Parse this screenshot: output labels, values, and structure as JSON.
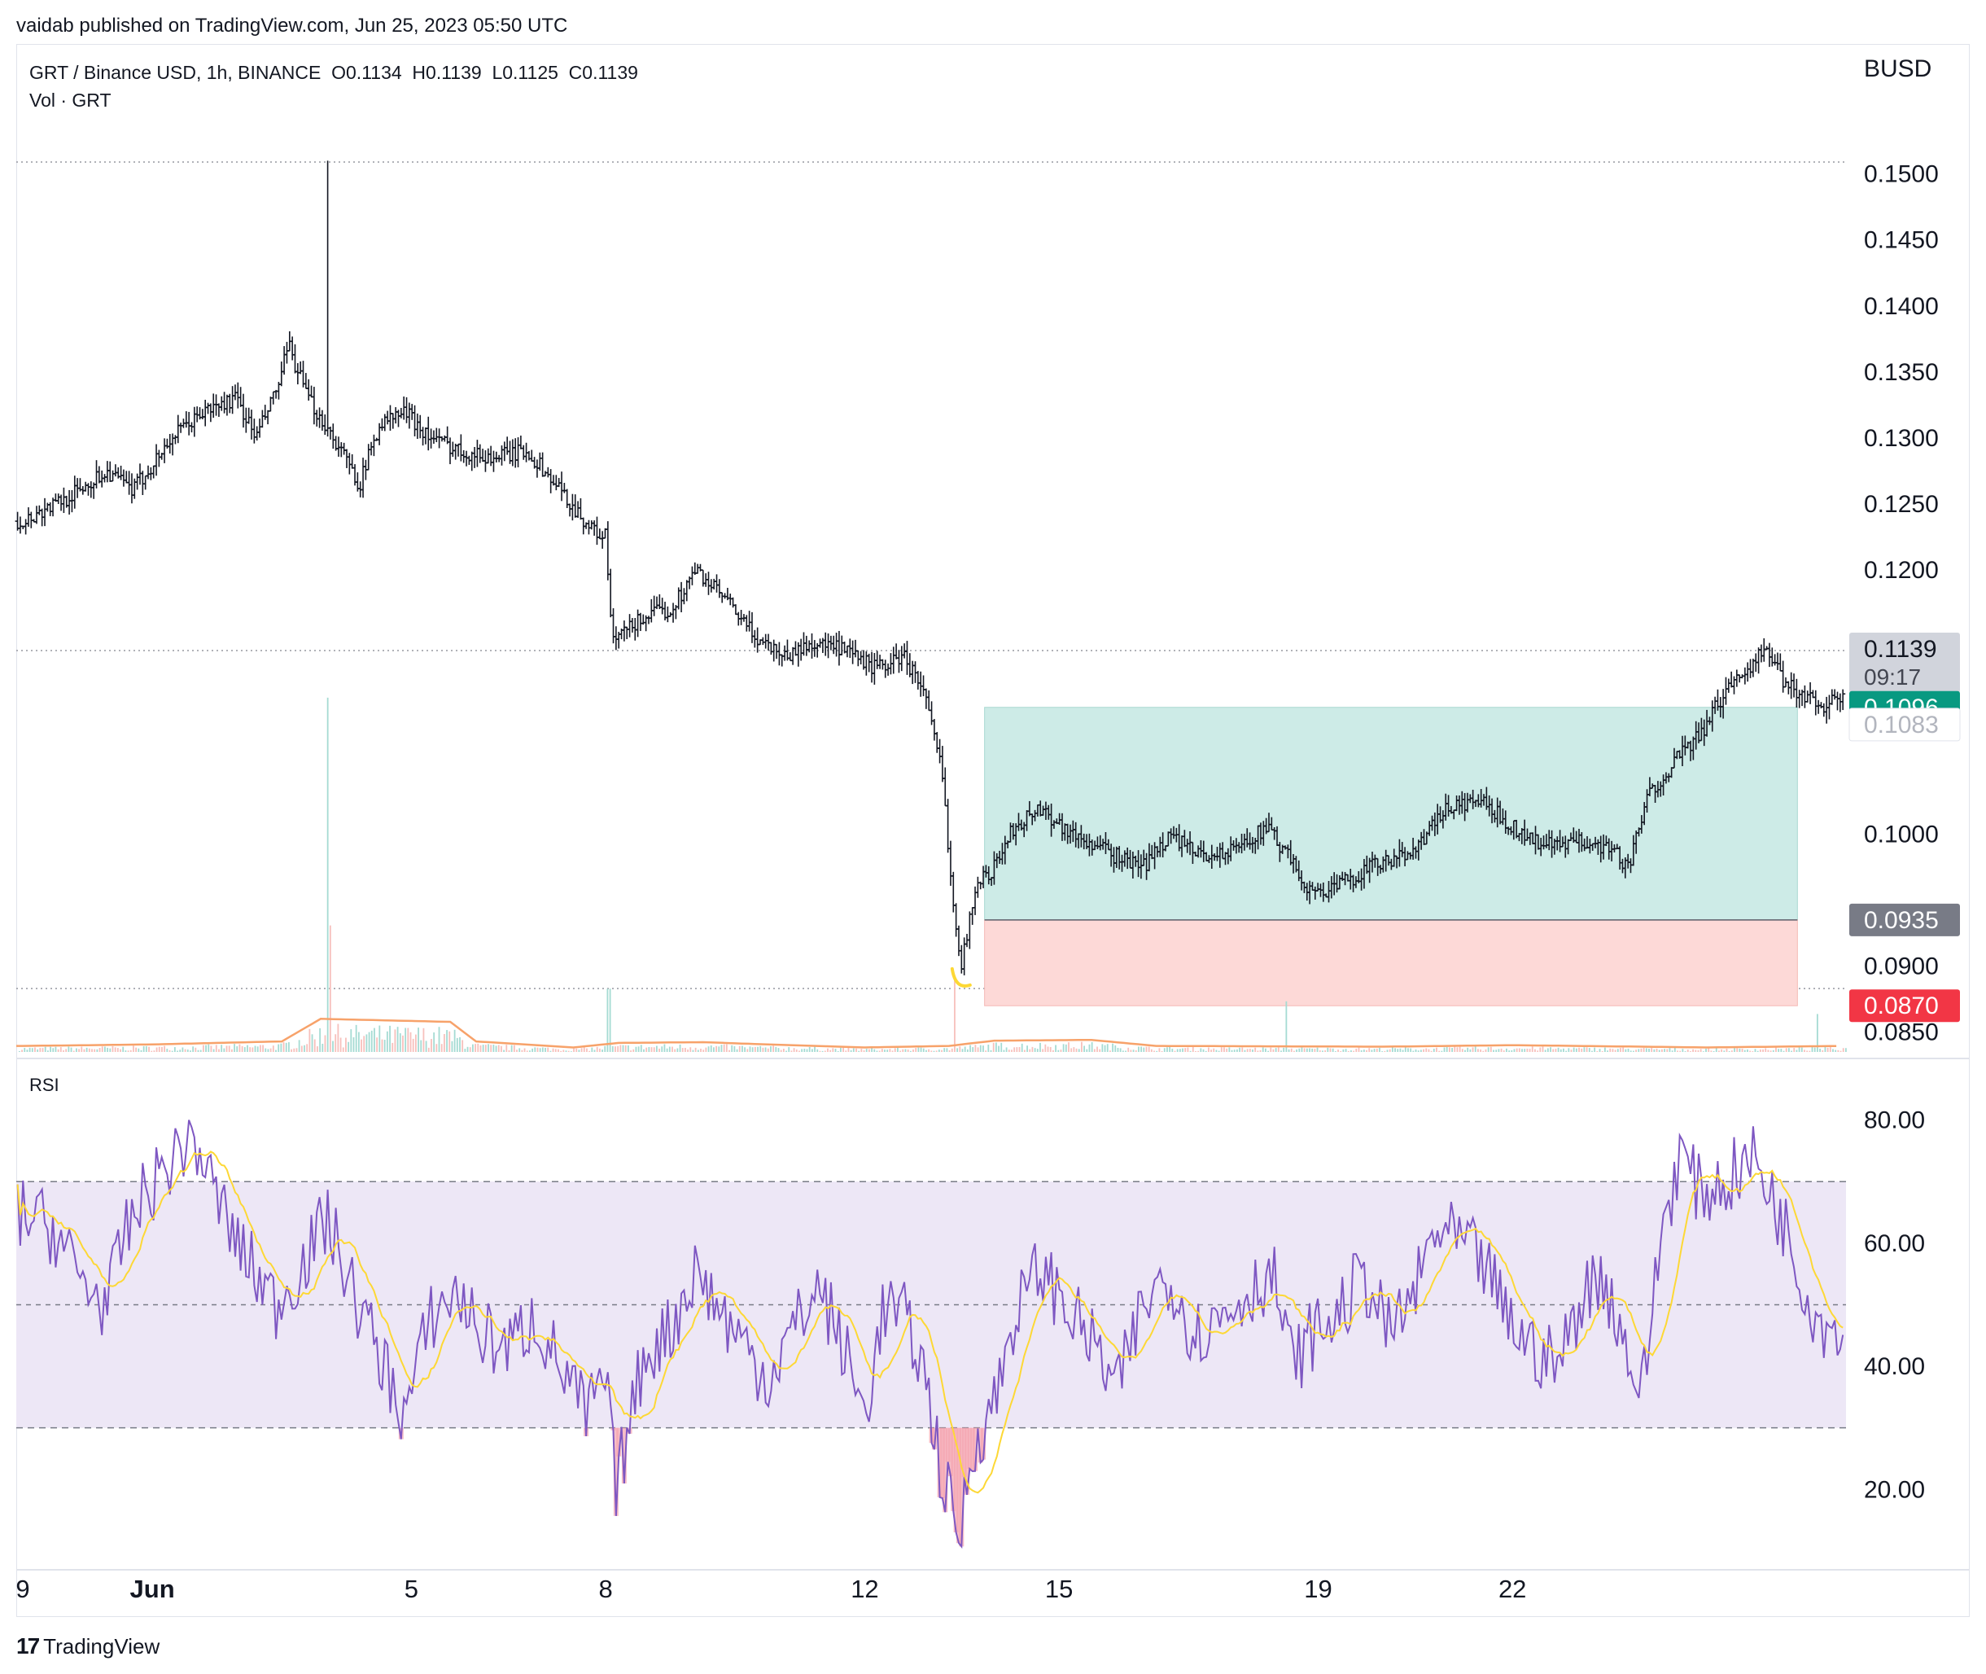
{
  "header": {
    "published": "vaidab published on TradingView.com, Jun 25, 2023 05:50 UTC",
    "legend_line1": "GRT / Binance USD, 1h, BINANCE  O0.1134  H0.1139  L0.1125  C0.1139",
    "legend_line2": "Vol · GRT",
    "currency": "BUSD"
  },
  "footer": {
    "logo_text": "TradingView"
  },
  "rsi": {
    "label": "RSI"
  },
  "chart_data": {
    "type": "candlestick",
    "symbol": "GRT / Binance USD",
    "interval": "1h",
    "exchange": "BINANCE",
    "ohlc_last": {
      "open": 0.1134,
      "high": 0.1139,
      "low": 0.1125,
      "close": 0.1139
    },
    "price_ticks": [
      "0.1500",
      "0.1450",
      "0.1400",
      "0.1350",
      "0.1300",
      "0.1250",
      "0.1200",
      "0.1000",
      "0.0900",
      "0.0850"
    ],
    "price_ylim": [
      0.0835,
      0.1575
    ],
    "date_ticks": [
      {
        "label": "9",
        "day": 29
      },
      {
        "label": "Jun",
        "day": 31,
        "bold": true
      },
      {
        "label": "5",
        "day": 35
      },
      {
        "label": "8",
        "day": 38
      },
      {
        "label": "12",
        "day": 42
      },
      {
        "label": "15",
        "day": 45
      },
      {
        "label": "19",
        "day": 49
      },
      {
        "label": "22",
        "day": 52
      }
    ],
    "price_key_points": [
      [
        29.0,
        0.1237
      ],
      [
        29.7,
        0.1255
      ],
      [
        30.3,
        0.1275
      ],
      [
        30.7,
        0.126
      ],
      [
        31.3,
        0.13
      ],
      [
        31.8,
        0.132
      ],
      [
        32.3,
        0.133
      ],
      [
        32.6,
        0.13
      ],
      [
        32.95,
        0.134
      ],
      [
        33.1,
        0.137
      ],
      [
        33.4,
        0.133
      ],
      [
        33.8,
        0.13
      ],
      [
        34.2,
        0.1265
      ],
      [
        34.5,
        0.131
      ],
      [
        34.9,
        0.132
      ],
      [
        35.3,
        0.13
      ],
      [
        35.8,
        0.129
      ],
      [
        36.2,
        0.1285
      ],
      [
        36.8,
        0.129
      ],
      [
        37.3,
        0.126
      ],
      [
        37.8,
        0.123
      ],
      [
        38.0,
        0.1225
      ],
      [
        38.1,
        0.1145
      ],
      [
        38.6,
        0.1165
      ],
      [
        39.0,
        0.117
      ],
      [
        39.4,
        0.12
      ],
      [
        39.8,
        0.118
      ],
      [
        40.3,
        0.115
      ],
      [
        40.8,
        0.1135
      ],
      [
        41.2,
        0.1145
      ],
      [
        41.6,
        0.114
      ],
      [
        42.2,
        0.1125
      ],
      [
        42.6,
        0.1135
      ],
      [
        42.9,
        0.111
      ],
      [
        43.2,
        0.1045
      ],
      [
        43.35,
        0.0955
      ],
      [
        43.5,
        0.09
      ],
      [
        43.7,
        0.096
      ],
      [
        44.0,
        0.0975
      ],
      [
        44.3,
        0.1005
      ],
      [
        44.7,
        0.102
      ],
      [
        45.2,
        0.1
      ],
      [
        45.8,
        0.0985
      ],
      [
        46.3,
        0.0975
      ],
      [
        46.7,
        0.1
      ],
      [
        47.1,
        0.0985
      ],
      [
        47.6,
        0.0985
      ],
      [
        48.2,
        0.1005
      ],
      [
        48.5,
        0.0985
      ],
      [
        48.9,
        0.0955
      ],
      [
        49.3,
        0.096
      ],
      [
        49.8,
        0.0975
      ],
      [
        50.2,
        0.098
      ],
      [
        50.6,
        0.0995
      ],
      [
        51.0,
        0.102
      ],
      [
        51.5,
        0.1025
      ],
      [
        51.9,
        0.101
      ],
      [
        52.3,
        0.0995
      ],
      [
        52.7,
        0.099
      ],
      [
        53.1,
        0.0995
      ],
      [
        53.5,
        0.099
      ],
      [
        53.8,
        0.0975
      ],
      [
        54.1,
        0.103
      ],
      [
        54.5,
        0.1055
      ],
      [
        54.9,
        0.1075
      ],
      [
        55.3,
        0.111
      ],
      [
        55.6,
        0.1125
      ],
      [
        55.9,
        0.114
      ],
      [
        56.2,
        0.1115
      ],
      [
        56.5,
        0.1105
      ],
      [
        56.8,
        0.1098
      ],
      [
        57.1,
        0.1102
      ]
    ],
    "spike": {
      "day": 33.7,
      "high": 0.151
    },
    "horizontal_lines": [
      {
        "price": 0.1509,
        "style": "dotted"
      },
      {
        "price": 0.1139,
        "style": "dotted"
      },
      {
        "price": 0.0883,
        "style": "dotted"
      }
    ],
    "position": {
      "type": "long",
      "start_day": 43.85,
      "end_day": 56.4,
      "target": 0.1096,
      "entry": 0.0935,
      "stop": 0.087,
      "profit_color": "#cdebe7",
      "loss_color": "#fdd9d7"
    },
    "price_labels": [
      {
        "text": "0.1139",
        "sub": "09:17",
        "price": 0.1139,
        "bg": "#d1d4dc",
        "fg": "#131722"
      },
      {
        "text": "0.1096",
        "price": 0.1096,
        "bg": "#089981",
        "fg": "#ffffff"
      },
      {
        "text": "0.1083",
        "price": 0.1083,
        "bg": "#ffffff",
        "fg": "#b2b5be"
      },
      {
        "text": "0.0935",
        "price": 0.0935,
        "bg": "#787b86",
        "fg": "#ffffff"
      },
      {
        "text": "0.0870",
        "price": 0.087,
        "bg": "#f23645",
        "fg": "#ffffff"
      }
    ],
    "volume": {
      "ma_color": "#f7a26a",
      "ma_key_points": [
        [
          29.0,
          0.8
        ],
        [
          31.0,
          1.0
        ],
        [
          33.0,
          1.4
        ],
        [
          33.6,
          4.4
        ],
        [
          35.6,
          4.0
        ],
        [
          36.0,
          1.4
        ],
        [
          37.5,
          0.6
        ],
        [
          38.2,
          1.2
        ],
        [
          39.5,
          1.3
        ],
        [
          40.5,
          1.0
        ],
        [
          42.0,
          0.6
        ],
        [
          43.3,
          0.8
        ],
        [
          44.0,
          1.5
        ],
        [
          45.5,
          1.6
        ],
        [
          46.5,
          0.8
        ],
        [
          50.0,
          0.7
        ],
        [
          52.0,
          0.9
        ],
        [
          55.0,
          0.6
        ],
        [
          57.1,
          0.8
        ]
      ],
      "spikes": [
        [
          33.7,
          28
        ],
        [
          33.75,
          10
        ],
        [
          38.05,
          5
        ],
        [
          43.4,
          6
        ],
        [
          48.5,
          4
        ],
        [
          56.7,
          3
        ]
      ]
    },
    "rsi": {
      "ticks": [
        "80.00",
        "60.00",
        "40.00",
        "20.00"
      ],
      "ylim": [
        8,
        90
      ],
      "band_upper": 70,
      "band_mid": 50,
      "band_lower": 30,
      "band_color": "#ede7f6",
      "line_color": "#7e57c2",
      "ma_color": "#fdd835",
      "key_points": [
        [
          29.0,
          65
        ],
        [
          29.5,
          62
        ],
        [
          29.9,
          54
        ],
        [
          30.3,
          50
        ],
        [
          30.6,
          62
        ],
        [
          30.9,
          68
        ],
        [
          31.2,
          72
        ],
        [
          31.6,
          78
        ],
        [
          31.9,
          70
        ],
        [
          32.3,
          60
        ],
        [
          32.6,
          55
        ],
        [
          32.9,
          50
        ],
        [
          33.3,
          56
        ],
        [
          33.7,
          64
        ],
        [
          34.1,
          52
        ],
        [
          34.5,
          42
        ],
        [
          34.9,
          32
        ],
        [
          35.3,
          48
        ],
        [
          35.7,
          52
        ],
        [
          36.1,
          45
        ],
        [
          36.5,
          43
        ],
        [
          36.9,
          48
        ],
        [
          37.3,
          40
        ],
        [
          37.7,
          32
        ],
        [
          38.0,
          38
        ],
        [
          38.15,
          20
        ],
        [
          38.6,
          42
        ],
        [
          39.0,
          46
        ],
        [
          39.4,
          56
        ],
        [
          39.7,
          50
        ],
        [
          40.1,
          44
        ],
        [
          40.5,
          38
        ],
        [
          40.9,
          46
        ],
        [
          41.3,
          53
        ],
        [
          41.7,
          42
        ],
        [
          42.0,
          32
        ],
        [
          42.3,
          50
        ],
        [
          42.6,
          48
        ],
        [
          42.9,
          40
        ],
        [
          43.2,
          22
        ],
        [
          43.45,
          12
        ],
        [
          43.7,
          28
        ],
        [
          44.0,
          34
        ],
        [
          44.3,
          48
        ],
        [
          44.7,
          56
        ],
        [
          45.1,
          50
        ],
        [
          45.5,
          44
        ],
        [
          45.9,
          36
        ],
        [
          46.3,
          50
        ],
        [
          46.7,
          55
        ],
        [
          47.1,
          45
        ],
        [
          47.5,
          48
        ],
        [
          47.9,
          52
        ],
        [
          48.3,
          55
        ],
        [
          48.6,
          40
        ],
        [
          48.9,
          45
        ],
        [
          49.3,
          48
        ],
        [
          49.7,
          55
        ],
        [
          50.1,
          45
        ],
        [
          50.5,
          52
        ],
        [
          50.8,
          62
        ],
        [
          51.2,
          60
        ],
        [
          51.6,
          56
        ],
        [
          51.9,
          48
        ],
        [
          52.3,
          43
        ],
        [
          52.7,
          40
        ],
        [
          53.1,
          52
        ],
        [
          53.4,
          55
        ],
        [
          53.7,
          45
        ],
        [
          54.0,
          35
        ],
        [
          54.3,
          62
        ],
        [
          54.6,
          75
        ],
        [
          54.9,
          68
        ],
        [
          55.3,
          70
        ],
        [
          55.7,
          74
        ],
        [
          56.0,
          68
        ],
        [
          56.3,
          60
        ],
        [
          56.6,
          50
        ],
        [
          56.9,
          46
        ],
        [
          57.1,
          48
        ]
      ]
    }
  }
}
